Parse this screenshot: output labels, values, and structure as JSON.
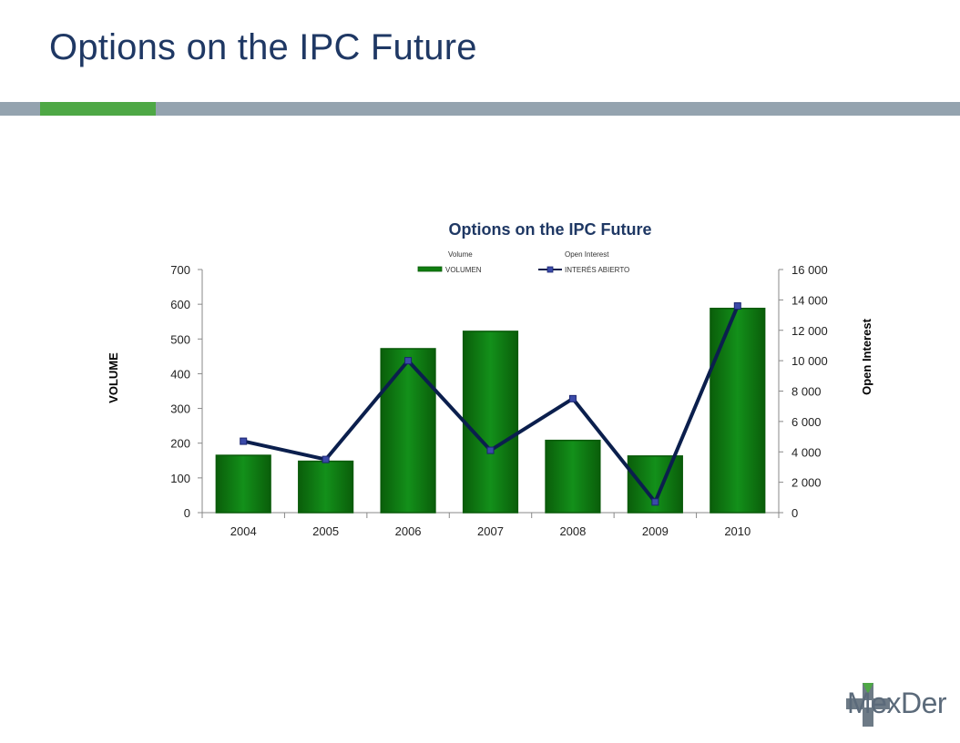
{
  "slide": {
    "title": "Options on the IPC Future"
  },
  "logo": {
    "text": "MexDer",
    "icon": "mexder-logo-icon"
  },
  "colors": {
    "title": "#1f3864",
    "bar_fill": "#0f7d0f",
    "bar_edge": "#0a5a0a",
    "line": "#0b1f4d",
    "marker": "#3b4aa8",
    "divider": "#94a3af",
    "accent": "#4ea845"
  },
  "chart_data": {
    "type": "bar",
    "title": "Options on the IPC Future",
    "categories": [
      "2004",
      "2005",
      "2006",
      "2007",
      "2008",
      "2009",
      "2010"
    ],
    "series": [
      {
        "name": "VOLUMEN",
        "legend_caption": "Volume",
        "type": "bar",
        "axis": "left",
        "values": [
          165,
          148,
          472,
          522,
          208,
          163,
          588
        ]
      },
      {
        "name": "INTERÉS ABIERTO",
        "legend_caption": "Open Interest",
        "type": "line",
        "axis": "right",
        "values": [
          4700,
          3500,
          10000,
          4100,
          7500,
          700,
          13600
        ]
      }
    ],
    "ylabel": "VOLUME",
    "y2label": "Open Interest",
    "ylim": [
      0,
      700
    ],
    "y2lim": [
      0,
      16000
    ],
    "yticks": [
      "0",
      "100",
      "200",
      "300",
      "400",
      "500",
      "600",
      "700"
    ],
    "y2ticks": [
      "0",
      "2 000",
      "4 000",
      "6 000",
      "8 000",
      "10 000",
      "12 000",
      "14 000",
      "16 000"
    ],
    "grid": false,
    "legend": "top-center"
  }
}
